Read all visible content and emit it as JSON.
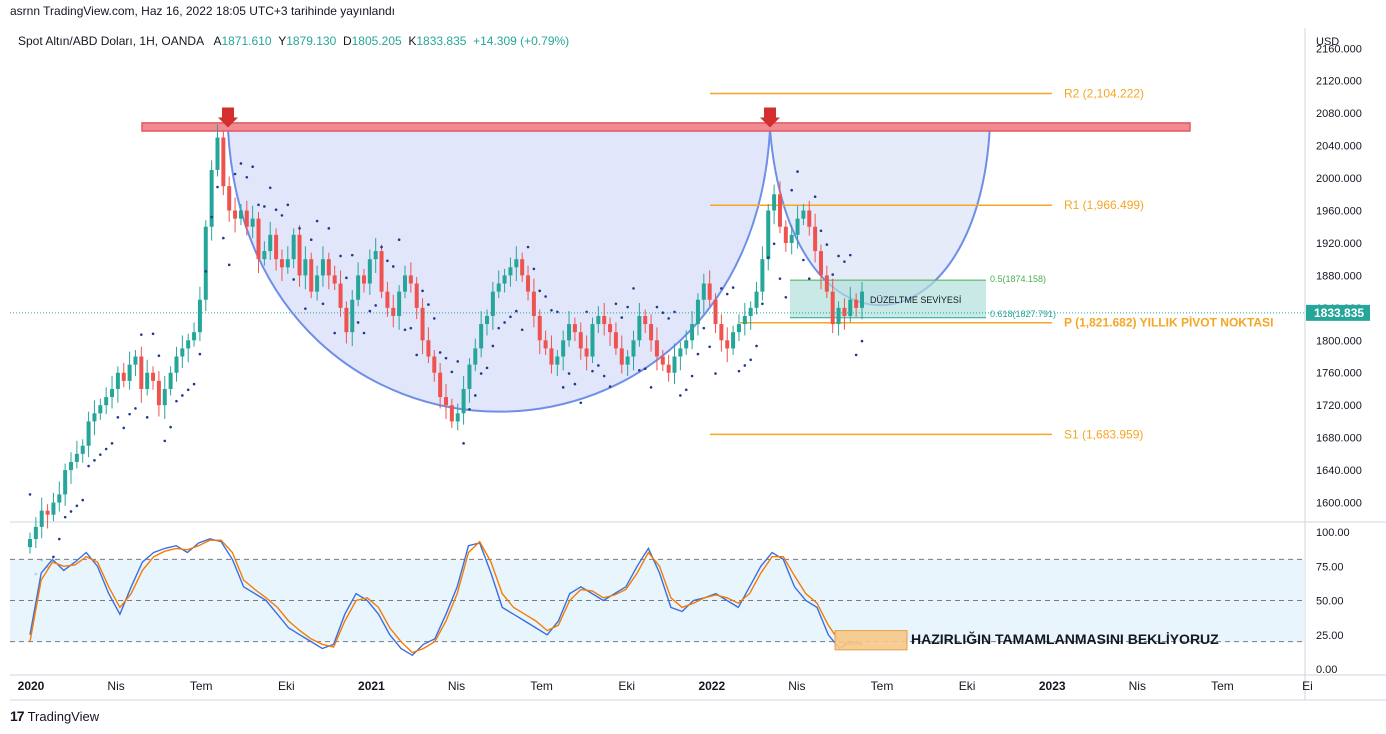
{
  "header": {
    "publisher": "asrnn TradingView.com, Haz 16, 2022 18:05 UTC+3 tarihinde yayınlandı"
  },
  "legend": {
    "symbol": "Spot Altın/ABD Doları, 1H, OANDA",
    "open_label": "A",
    "open": "1871.610",
    "high_label": "Y",
    "high": "1879.130",
    "low_label": "D",
    "low": "1805.205",
    "close_label": "K",
    "close": "1833.835",
    "change": "+14.309 (+0.79%)"
  },
  "chart_data": [
    {
      "type": "candlestick",
      "currency": "USD",
      "y_ticks": [
        "2160.000",
        "2120.000",
        "2080.000",
        "2040.000",
        "2000.000",
        "1960.000",
        "1920.000",
        "1880.000",
        "1840.000",
        "1800.000",
        "1760.000",
        "1720.000",
        "1680.000",
        "1640.000",
        "1600.000"
      ],
      "ylim": [
        1576,
        2185
      ],
      "x_tick_labels": [
        "2020",
        "Nis",
        "Tem",
        "Eki",
        "2021",
        "Nis",
        "Tem",
        "Eki",
        "2022",
        "Nis",
        "Tem",
        "Eki",
        "2023",
        "Nis",
        "Tem",
        "Ei"
      ],
      "last_price": "1833.835",
      "last_value": 1833.835,
      "close_series": [
        1555,
        1570,
        1590,
        1585,
        1600,
        1610,
        1640,
        1650,
        1660,
        1670,
        1700,
        1710,
        1720,
        1730,
        1740,
        1760,
        1750,
        1770,
        1780,
        1740,
        1760,
        1750,
        1720,
        1740,
        1760,
        1780,
        1790,
        1800,
        1810,
        1850,
        1940,
        2010,
        2050,
        1990,
        1960,
        1950,
        1960,
        1940,
        1950,
        1900,
        1910,
        1930,
        1900,
        1890,
        1900,
        1930,
        1880,
        1900,
        1860,
        1880,
        1900,
        1880,
        1870,
        1840,
        1810,
        1850,
        1880,
        1870,
        1900,
        1910,
        1860,
        1840,
        1830,
        1860,
        1880,
        1870,
        1840,
        1800,
        1780,
        1760,
        1730,
        1720,
        1700,
        1710,
        1740,
        1770,
        1790,
        1820,
        1830,
        1860,
        1870,
        1880,
        1890,
        1900,
        1880,
        1860,
        1830,
        1800,
        1790,
        1770,
        1780,
        1800,
        1820,
        1810,
        1790,
        1780,
        1820,
        1830,
        1820,
        1810,
        1790,
        1770,
        1780,
        1800,
        1830,
        1820,
        1800,
        1780,
        1770,
        1760,
        1780,
        1790,
        1800,
        1820,
        1850,
        1870,
        1850,
        1820,
        1800,
        1790,
        1810,
        1820,
        1830,
        1840,
        1860,
        1900,
        1960,
        1980,
        1940,
        1920,
        1930,
        1950,
        1960,
        1940,
        1910,
        1880,
        1860,
        1820,
        1840,
        1830,
        1850,
        1840,
        1860
      ],
      "series": [
        {
          "name": "R2 (2,104.222)",
          "value": 2104.222,
          "color": "#f5a623"
        },
        {
          "name": "R1 (1,966.499)",
          "value": 1966.499,
          "color": "#f5a623"
        },
        {
          "name": "P (1,821.682) YILLIK PİVOT NOKTASI",
          "value": 1821.682,
          "color": "#f5a623"
        },
        {
          "name": "S1 (1,683.959)",
          "value": 1683.959,
          "color": "#f5a623"
        }
      ],
      "resistance_zone": {
        "low": 2058,
        "high": 2068,
        "color": "#f28b91"
      },
      "fib_levels": [
        {
          "label": "0.5(1874.158)",
          "value": 1874.158
        },
        {
          "label": "0.618(1827.791)",
          "value": 1827.791
        }
      ],
      "annotations": [
        "DÜZELTME SEVİYESİ"
      ],
      "colors": {
        "up": "#26a69a",
        "down": "#ef5350",
        "cup_fill": "#c8d2f5",
        "cup_stroke": "#6f8ee8",
        "sar": "#1e3a8a"
      }
    },
    {
      "type": "line",
      "y_ticks": [
        "100.00",
        "75.00",
        "50.00",
        "25.00",
        "0.00"
      ],
      "ylim": [
        0,
        100
      ],
      "levels": [
        80,
        50,
        20
      ],
      "series": [
        {
          "color": "#3b6fe0",
          "values": [
            25,
            70,
            80,
            72,
            78,
            85,
            75,
            55,
            40,
            60,
            78,
            85,
            88,
            90,
            85,
            92,
            95,
            93,
            80,
            60,
            55,
            50,
            40,
            30,
            25,
            20,
            15,
            18,
            40,
            55,
            50,
            40,
            25,
            15,
            10,
            18,
            22,
            40,
            60,
            90,
            92,
            70,
            45,
            40,
            35,
            30,
            25,
            35,
            55,
            60,
            55,
            50,
            55,
            60,
            75,
            88,
            70,
            45,
            42,
            50,
            52,
            55,
            50,
            45,
            60,
            75,
            85,
            80,
            60,
            50,
            45,
            25,
            15,
            20,
            18
          ]
        },
        {
          "color": "#f57c00",
          "values": [
            20,
            65,
            78,
            75,
            76,
            82,
            78,
            60,
            45,
            55,
            72,
            82,
            86,
            88,
            87,
            90,
            94,
            94,
            85,
            65,
            58,
            52,
            45,
            35,
            28,
            22,
            18,
            16,
            35,
            50,
            52,
            45,
            30,
            20,
            12,
            15,
            20,
            35,
            55,
            85,
            93,
            78,
            55,
            45,
            40,
            35,
            28,
            32,
            50,
            58,
            57,
            52,
            54,
            58,
            70,
            85,
            75,
            52,
            45,
            48,
            52,
            54,
            52,
            48,
            55,
            70,
            82,
            82,
            68,
            55,
            48,
            32,
            20,
            18,
            19
          ]
        }
      ],
      "annotation": "HAZIRLIĞIN TAMAMLANMASINI BEKLİYORUZ"
    }
  ],
  "footer": {
    "brand": "TradingView"
  }
}
